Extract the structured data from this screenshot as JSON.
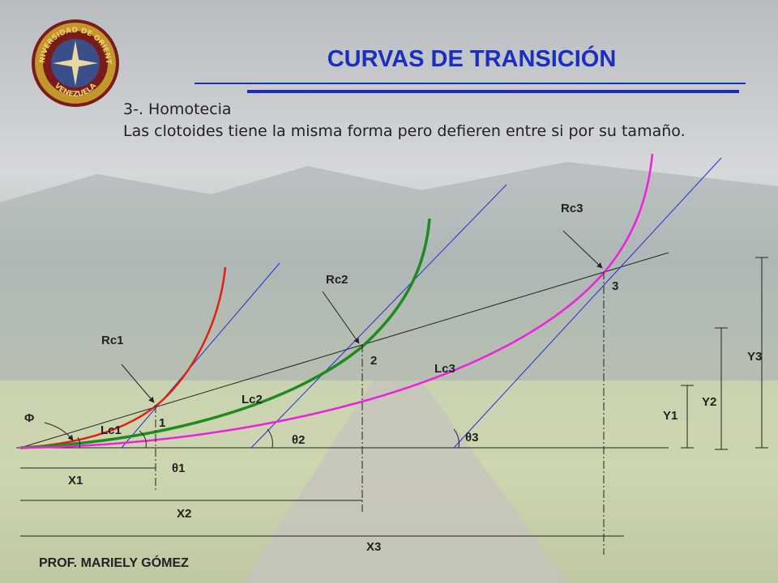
{
  "header": {
    "title": "CURVAS DE TRANSICIÓN",
    "logo_top": "UNIVERSIDAD DE ORIENTE",
    "logo_bottom": "VENEZUELA"
  },
  "body": {
    "heading": "3-. Homotecia",
    "text": "Las clotoides tiene la misma forma pero defieren entre si por su tamaño."
  },
  "diagram": {
    "radii": [
      "Rc1",
      "Rc2",
      "Rc3"
    ],
    "points": [
      "1",
      "2",
      "3"
    ],
    "lengths": [
      "Lc1",
      "Lc2",
      "Lc3"
    ],
    "angle_phi": "Φ",
    "angles": [
      "θ1",
      "θ2",
      "θ3"
    ],
    "x_dims": [
      "X1",
      "X2",
      "X3"
    ],
    "y_dims": [
      "Y1",
      "Y2",
      "Y3"
    ]
  },
  "footer": {
    "author": "PROF. MARIELY GÓMEZ"
  }
}
